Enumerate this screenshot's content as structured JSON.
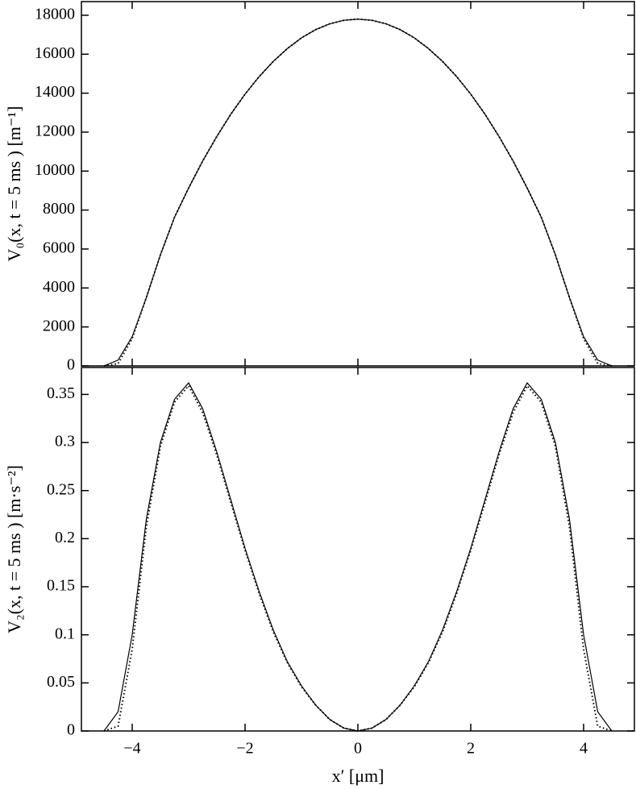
{
  "chart_data": [
    {
      "type": "line",
      "ylabel": "V₀(x, t = 5 ms ) [m⁻¹]",
      "x": [
        -4.5,
        -4.25,
        -4,
        -3.75,
        -3.5,
        -3.25,
        -3,
        -2.75,
        -2.5,
        -2.25,
        -2,
        -1.75,
        -1.5,
        -1.25,
        -1,
        -0.75,
        -0.5,
        -0.25,
        0,
        0.25,
        0.5,
        0.75,
        1,
        1.25,
        1.5,
        1.75,
        2,
        2.25,
        2.5,
        2.75,
        3,
        3.25,
        3.5,
        3.75,
        4,
        4.25,
        4.5
      ],
      "series": [
        {
          "color": "#000000",
          "linestyle": "solid",
          "values": [
            0,
            300,
            1500,
            3500,
            5700,
            7630,
            9130,
            10520,
            11780,
            12930,
            13950,
            14850,
            15630,
            16290,
            16840,
            17260,
            17560,
            17740,
            17800,
            17740,
            17560,
            17260,
            16840,
            16290,
            15630,
            14850,
            13950,
            12930,
            11780,
            10520,
            9130,
            7630,
            5700,
            3500,
            1500,
            300,
            0
          ]
        },
        {
          "color": "#000000",
          "linestyle": "dotted",
          "values": [
            0,
            120,
            1400,
            3500,
            5700,
            7630,
            9130,
            10520,
            11780,
            12930,
            13950,
            14850,
            15630,
            16290,
            16840,
            17260,
            17560,
            17740,
            17800,
            17740,
            17560,
            17260,
            16840,
            16290,
            15630,
            14850,
            13950,
            12930,
            11780,
            10520,
            9130,
            7630,
            5700,
            3500,
            1400,
            120,
            0
          ]
        }
      ],
      "xlim": [
        -4.9,
        4.9
      ],
      "xticks": [
        -4,
        -2,
        0,
        2,
        4
      ],
      "ylim": [
        0,
        18700
      ],
      "yticks": [
        0,
        2000,
        4000,
        6000,
        8000,
        10000,
        12000,
        14000,
        16000,
        18000
      ]
    },
    {
      "type": "line",
      "ylabel": "V₂(x, t = 5 ms ) [m·s⁻²]",
      "xlabel": "x′ [μm]",
      "x": [
        -4.5,
        -4.25,
        -4,
        -3.75,
        -3.5,
        -3.25,
        -3,
        -2.75,
        -2.5,
        -2.25,
        -2,
        -1.75,
        -1.5,
        -1.25,
        -1,
        -0.75,
        -0.5,
        -0.25,
        0,
        0.25,
        0.5,
        0.75,
        1,
        1.25,
        1.5,
        1.75,
        2,
        2.25,
        2.5,
        2.75,
        3,
        3.25,
        3.5,
        3.75,
        4,
        4.25,
        4.5
      ],
      "series": [
        {
          "color": "#000000",
          "linestyle": "solid",
          "values": [
            0,
            0.02,
            0.1,
            0.22,
            0.3,
            0.345,
            0.362,
            0.335,
            0.29,
            0.24,
            0.19,
            0.145,
            0.105,
            0.072,
            0.047,
            0.027,
            0.012,
            0.003,
            0,
            0.003,
            0.012,
            0.027,
            0.047,
            0.072,
            0.105,
            0.145,
            0.19,
            0.24,
            0.29,
            0.335,
            0.362,
            0.345,
            0.3,
            0.22,
            0.1,
            0.02,
            0
          ]
        },
        {
          "color": "#000000",
          "linestyle": "dotted",
          "values": [
            0,
            0.005,
            0.085,
            0.212,
            0.296,
            0.342,
            0.359,
            0.331,
            0.287,
            0.237,
            0.188,
            0.143,
            0.103,
            0.071,
            0.046,
            0.027,
            0.012,
            0.003,
            0,
            0.003,
            0.012,
            0.027,
            0.046,
            0.071,
            0.103,
            0.143,
            0.188,
            0.237,
            0.287,
            0.331,
            0.359,
            0.342,
            0.296,
            0.212,
            0.085,
            0.005,
            0
          ]
        }
      ],
      "xlim": [
        -4.9,
        4.9
      ],
      "xticks": [
        {
          "value": -4,
          "label": "−4"
        },
        {
          "value": -2,
          "label": "−2"
        },
        0,
        2,
        4
      ],
      "ylim": [
        0,
        0.378
      ],
      "yticks": [
        0,
        0.05,
        0.1,
        0.15,
        0.2,
        0.25,
        0.3,
        0.35
      ]
    }
  ]
}
